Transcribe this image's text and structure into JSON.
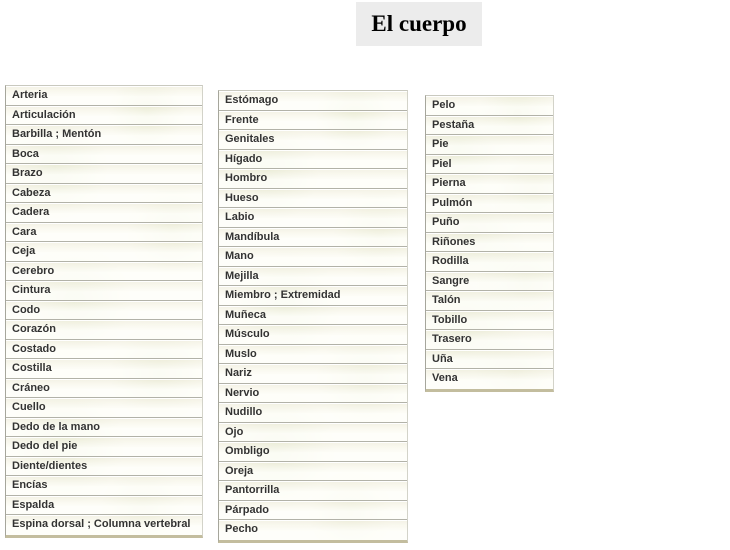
{
  "title": "El cuerpo",
  "colors": {
    "page_background": "#ffffff",
    "title_background": "#ececec",
    "title_text": "#000000",
    "cell_background": "#fbfbf2",
    "cell_border": "#b2b2a8",
    "cell_text": "#333333",
    "watermark_green": "#cdd8a4"
  },
  "columns": [
    {
      "name": "column-1",
      "items": [
        "Arteria",
        "Articulación",
        "Barbilla ; Mentón",
        "Boca",
        "Brazo",
        "Cabeza",
        "Cadera",
        "Cara",
        "Ceja",
        "Cerebro",
        "Cintura",
        "Codo",
        "Corazón",
        "Costado",
        "Costilla",
        "Cráneo",
        "Cuello",
        "Dedo de la mano",
        "Dedo del pie",
        "Diente/dientes",
        "Encías",
        "Espalda",
        "Espina dorsal ; Columna vertebral"
      ]
    },
    {
      "name": "column-2",
      "items": [
        "Estómago",
        "Frente",
        "Genitales",
        "Hígado",
        "Hombro",
        "Hueso",
        "Labio",
        "Mandíbula",
        "Mano",
        "Mejilla",
        "Miembro ; Extremidad",
        "Muñeca",
        "Músculo",
        "Muslo",
        "Nariz",
        "Nervio",
        "Nudillo",
        "Ojo",
        "Ombligo",
        "Oreja",
        "Pantorrilla",
        "Párpado",
        "Pecho"
      ]
    },
    {
      "name": "column-3",
      "items": [
        "Pelo",
        "Pestaña",
        "Pie",
        "Piel",
        "Pierna",
        "Pulmón",
        "Puño",
        "Riñones",
        "Rodilla",
        "Sangre",
        "Talón",
        "Tobillo",
        "Trasero",
        "Uña",
        "Vena"
      ]
    }
  ]
}
